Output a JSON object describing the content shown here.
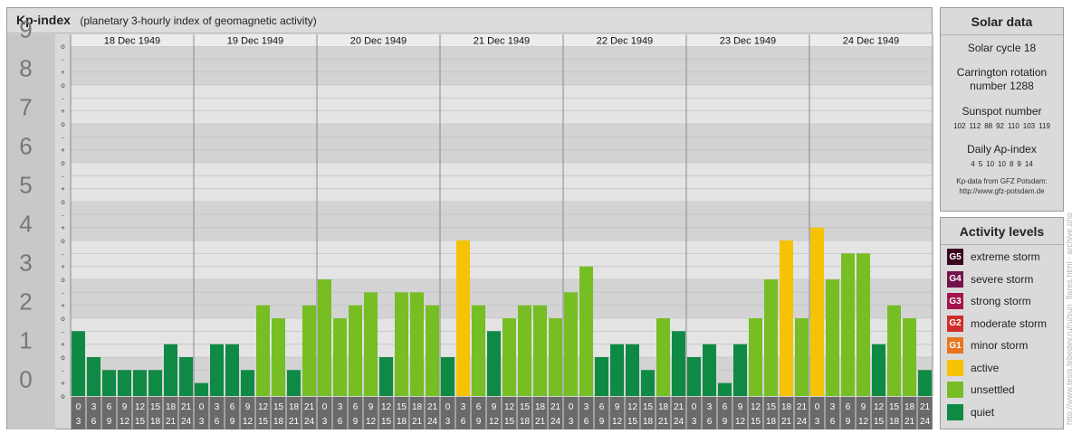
{
  "header": {
    "title": "Kp-index",
    "subtitle": "(planetary 3-hourly index of geomagnetic activity)"
  },
  "chart_data": {
    "type": "bar",
    "title": "Kp-index",
    "subtitle": "(planetary 3-hourly index of geomagnetic activity)",
    "y_ticks": [
      "0",
      "1",
      "2",
      "3",
      "4",
      "5",
      "6",
      "7",
      "8",
      "9"
    ],
    "sub_ticks": [
      "o",
      "-",
      "+"
    ],
    "ylim": [
      0,
      9
    ],
    "days": [
      "18 Dec 1949",
      "19 Dec 1949",
      "20 Dec 1949",
      "21 Dec 1949",
      "22 Dec 1949",
      "23 Dec 1949",
      "24 Dec 1949"
    ],
    "interval_starts": [
      "0",
      "3",
      "6",
      "9",
      "12",
      "15",
      "18",
      "21"
    ],
    "interval_ends": [
      "3",
      "6",
      "9",
      "12",
      "15",
      "18",
      "21",
      "24"
    ],
    "values": [
      [
        1.667,
        1.0,
        0.667,
        0.667,
        0.667,
        0.667,
        1.333,
        1.0
      ],
      [
        0.333,
        1.333,
        1.333,
        0.667,
        2.333,
        2.0,
        0.667,
        2.333
      ],
      [
        3.0,
        2.0,
        2.333,
        2.667,
        1.0,
        2.667,
        2.667,
        2.333
      ],
      [
        1.0,
        4.0,
        2.333,
        1.667,
        2.0,
        2.333,
        2.333,
        2.0
      ],
      [
        2.667,
        3.333,
        1.0,
        1.333,
        1.333,
        0.667,
        2.0,
        1.667
      ],
      [
        1.0,
        1.333,
        0.333,
        1.333,
        2.0,
        3.0,
        4.0,
        2.0
      ],
      [
        4.333,
        3.0,
        3.667,
        3.667,
        1.333,
        2.333,
        2.0,
        0.667
      ]
    ],
    "colors": {
      "quiet": "#0e8a45",
      "unsettled": "#76be24",
      "active": "#f6c204"
    }
  },
  "solar": {
    "heading": "Solar data",
    "cycle": "Solar cycle 18",
    "carrington_1": "Carrington rotation",
    "carrington_2": "number 1288",
    "sunspot_label": "Sunspot number",
    "sunspots": [
      "102",
      "112",
      "88",
      "92",
      "110",
      "103",
      "119"
    ],
    "ap_label": "Daily Ap-index",
    "ap": [
      "4",
      "5",
      "10",
      "10",
      "8",
      "9",
      "14"
    ],
    "credit_1": "Kp-data from GFZ Potsdam:",
    "credit_2": "http://www.gfz-potsdam.de"
  },
  "activity": {
    "heading": "Activity levels",
    "levels": [
      {
        "code": "G5",
        "label": "extreme storm",
        "color": "#3c0520"
      },
      {
        "code": "G4",
        "label": "severe storm",
        "color": "#74124a"
      },
      {
        "code": "G3",
        "label": "strong storm",
        "color": "#a3154e"
      },
      {
        "code": "G2",
        "label": "moderate storm",
        "color": "#d02e2a"
      },
      {
        "code": "G1",
        "label": "minor storm",
        "color": "#e8761f"
      },
      {
        "code": "",
        "label": "active",
        "color": "#f6c204"
      },
      {
        "code": "",
        "label": "unsettled",
        "color": "#76be24"
      },
      {
        "code": "",
        "label": "quiet",
        "color": "#0e8a45"
      }
    ]
  },
  "watermark": "http://www.tesis.lebedev.ru/ru/sun_flares.html - archive.php"
}
